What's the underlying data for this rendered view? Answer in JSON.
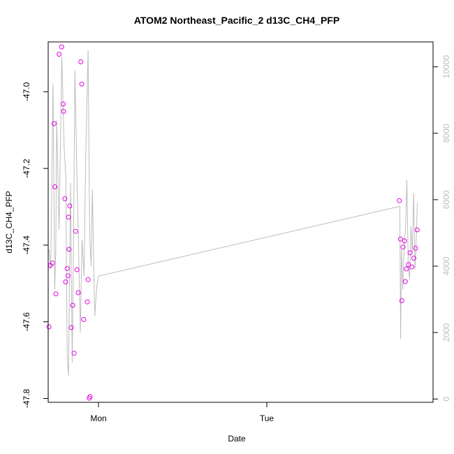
{
  "chart_data": {
    "type": "scatter",
    "title": "ATOM2 Northeast_Pacific_2 d13C_CH4_PFP",
    "xlabel": "Date",
    "ylabel": "d13C_CH4_PFP",
    "x_ticks": [
      {
        "label": "Mon",
        "day": 1.0
      },
      {
        "label": "Tue",
        "day": 2.0
      }
    ],
    "ylim": [
      -47.81,
      -46.87
    ],
    "y_ticks": [
      -47.8,
      -47.6,
      -47.4,
      -47.2,
      -47.0
    ],
    "y_tick_labels": [
      "-47.8",
      "-47.6",
      "-47.4",
      "-47.2",
      "-47.0"
    ],
    "y2lim": [
      -100,
      10750
    ],
    "y2_ticks": [
      0,
      2000,
      4000,
      6000,
      8000,
      10000
    ],
    "y2_tick_labels": [
      "0",
      "2000",
      "4000",
      "6000",
      "8000",
      "10000"
    ],
    "series": [
      {
        "kind": "points",
        "color": "#e600e6",
        "x_day": [
          0.706,
          0.714,
          0.726,
          0.736,
          0.741,
          0.747,
          0.766,
          0.781,
          0.79,
          0.793,
          0.8,
          0.805,
          0.814,
          0.819,
          0.822,
          0.825,
          0.829,
          0.838,
          0.847,
          0.855,
          0.864,
          0.872,
          0.88,
          0.895,
          0.901,
          0.912,
          0.933,
          0.938,
          0.945,
          0.95,
          2.787,
          2.794,
          2.802,
          2.809,
          2.818,
          2.823,
          2.829,
          2.841,
          2.851,
          2.862,
          2.873,
          2.883,
          2.893
        ],
        "y": [
          -47.613,
          -47.453,
          -47.447,
          -47.083,
          -47.248,
          -47.527,
          -46.902,
          -46.883,
          -47.032,
          -47.051,
          -47.279,
          -47.496,
          -47.461,
          -47.48,
          -47.327,
          -47.411,
          -47.298,
          -47.615,
          -47.557,
          -47.682,
          -47.364,
          -47.464,
          -47.524,
          -46.922,
          -46.98,
          -47.594,
          -47.548,
          -47.49,
          -47.799,
          -47.795,
          -47.284,
          -47.384,
          -47.545,
          -47.405,
          -47.389,
          -47.495,
          -47.462,
          -47.451,
          -47.42,
          -47.457,
          -47.434,
          -47.408,
          -47.36
        ]
      },
      {
        "kind": "line",
        "color": "#bdbdbd",
        "x_day": [
          0.706,
          0.716,
          0.73,
          0.74,
          0.746,
          0.752,
          0.766,
          0.782,
          0.796,
          0.806,
          0.814,
          0.822,
          0.834,
          0.844,
          0.852,
          0.86,
          0.874,
          0.88,
          0.892,
          0.902,
          0.914,
          0.924,
          0.938,
          0.948,
          0.956,
          0.964,
          0.972,
          0.978,
          0.99,
          1.0,
          2.79,
          2.795,
          2.8,
          2.808,
          2.816,
          2.824,
          2.832,
          2.84,
          2.848,
          2.856,
          2.864,
          2.872,
          2.88,
          2.886,
          2.894
        ],
        "y2": [
          4500,
          3900,
          9500,
          3300,
          4400,
          8400,
          5100,
          10300,
          7600,
          6700,
          1300,
          700,
          6500,
          1100,
          4800,
          9900,
          6200,
          5000,
          2000,
          4800,
          3700,
          7300,
          10500,
          4900,
          4000,
          6300,
          3900,
          2500,
          3400,
          3700,
          5800,
          1800,
          4500,
          3300,
          4700,
          5100,
          6600,
          4100,
          3600,
          5200,
          4400,
          6200,
          3900,
          4500,
          5900
        ]
      }
    ]
  }
}
